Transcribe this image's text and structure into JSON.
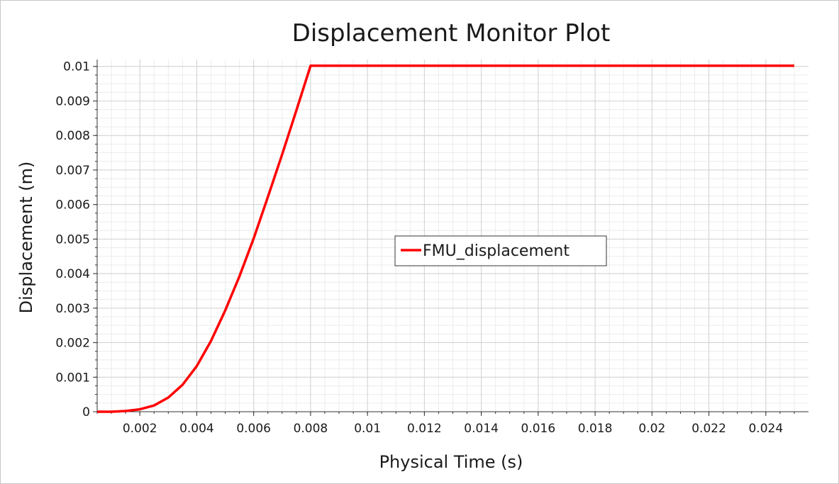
{
  "chart_data": {
    "type": "line",
    "title": "Displacement Monitor Plot",
    "xlabel": "Physical Time (s)",
    "ylabel": "Displacement (m)",
    "xlim": [
      0.0005,
      0.0255
    ],
    "ylim": [
      0,
      0.0102
    ],
    "x_ticks": [
      0.002,
      0.004,
      0.006,
      0.008,
      0.01,
      0.012,
      0.014,
      0.016,
      0.018,
      0.02,
      0.022,
      0.024
    ],
    "x_tick_labels": [
      "0.002",
      "0.004",
      "0.006",
      "0.008",
      "0.01",
      "0.012",
      "0.014",
      "0.016",
      "0.018",
      "0.02",
      "0.022",
      "0.024"
    ],
    "y_ticks": [
      0,
      0.001,
      0.002,
      0.003,
      0.004,
      0.005,
      0.006,
      0.007,
      0.008,
      0.009,
      0.01
    ],
    "y_tick_labels": [
      "0",
      "0.001",
      "0.002",
      "0.003",
      "0.004",
      "0.005",
      "0.006",
      "0.007",
      "0.008",
      "0.009",
      "0.01"
    ],
    "grid": true,
    "minor_grid": true,
    "legend_position": "center",
    "series": [
      {
        "name": "FMU_displacement",
        "color": "#ff0000",
        "x": [
          0.0005,
          0.001,
          0.0015,
          0.002,
          0.0025,
          0.003,
          0.0035,
          0.004,
          0.0045,
          0.005,
          0.0055,
          0.006,
          0.0065,
          0.007,
          0.0075,
          0.008,
          0.025
        ],
        "y": [
          0.0,
          0.0,
          2e-05,
          7e-05,
          0.00018,
          0.00041,
          0.00078,
          0.00132,
          0.00205,
          0.00293,
          0.00392,
          0.00502,
          0.00622,
          0.00745,
          0.00872,
          0.01002,
          0.01002
        ]
      }
    ]
  }
}
